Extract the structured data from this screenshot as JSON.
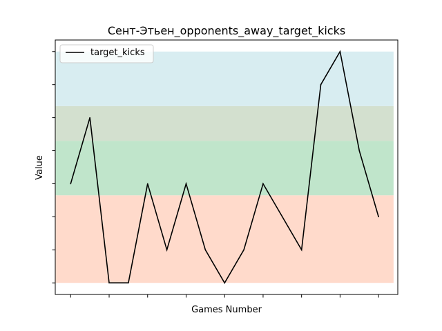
{
  "chart_data": {
    "type": "line",
    "title": "Сент-Этьен_opponents_away_target_kicks",
    "xlabel": "Games Number",
    "ylabel": "Value",
    "x": [
      1,
      2,
      3,
      4,
      5,
      6,
      7,
      8,
      9,
      10,
      11,
      12,
      13,
      14,
      15,
      16,
      17
    ],
    "series": [
      {
        "name": "target_kicks",
        "color": "#000000",
        "values": [
          3,
          5,
          0,
          0,
          3,
          1,
          3,
          1,
          0,
          1,
          3,
          2,
          1,
          6,
          7,
          4,
          2
        ]
      }
    ],
    "xlim": [
      0.2,
      18.0
    ],
    "ylim": [
      -0.35,
      7.35
    ],
    "x_ticks": [
      1,
      3,
      5,
      7,
      9,
      11,
      13,
      15,
      17
    ],
    "y_ticks": [
      0,
      1,
      2,
      3,
      4,
      5,
      6,
      7
    ],
    "bands": [
      {
        "from": 0,
        "to": 2.65,
        "color": "#ffdacb"
      },
      {
        "from": 2.65,
        "to": 4.3,
        "color": "#c0e5cb"
      },
      {
        "from": 4.3,
        "to": 5.35,
        "color": "#d3e0cf"
      },
      {
        "from": 5.35,
        "to": 7,
        "color": "#d8edf1"
      }
    ],
    "legend_position": "top-left",
    "tick_labels_visible": false,
    "grid": false
  }
}
